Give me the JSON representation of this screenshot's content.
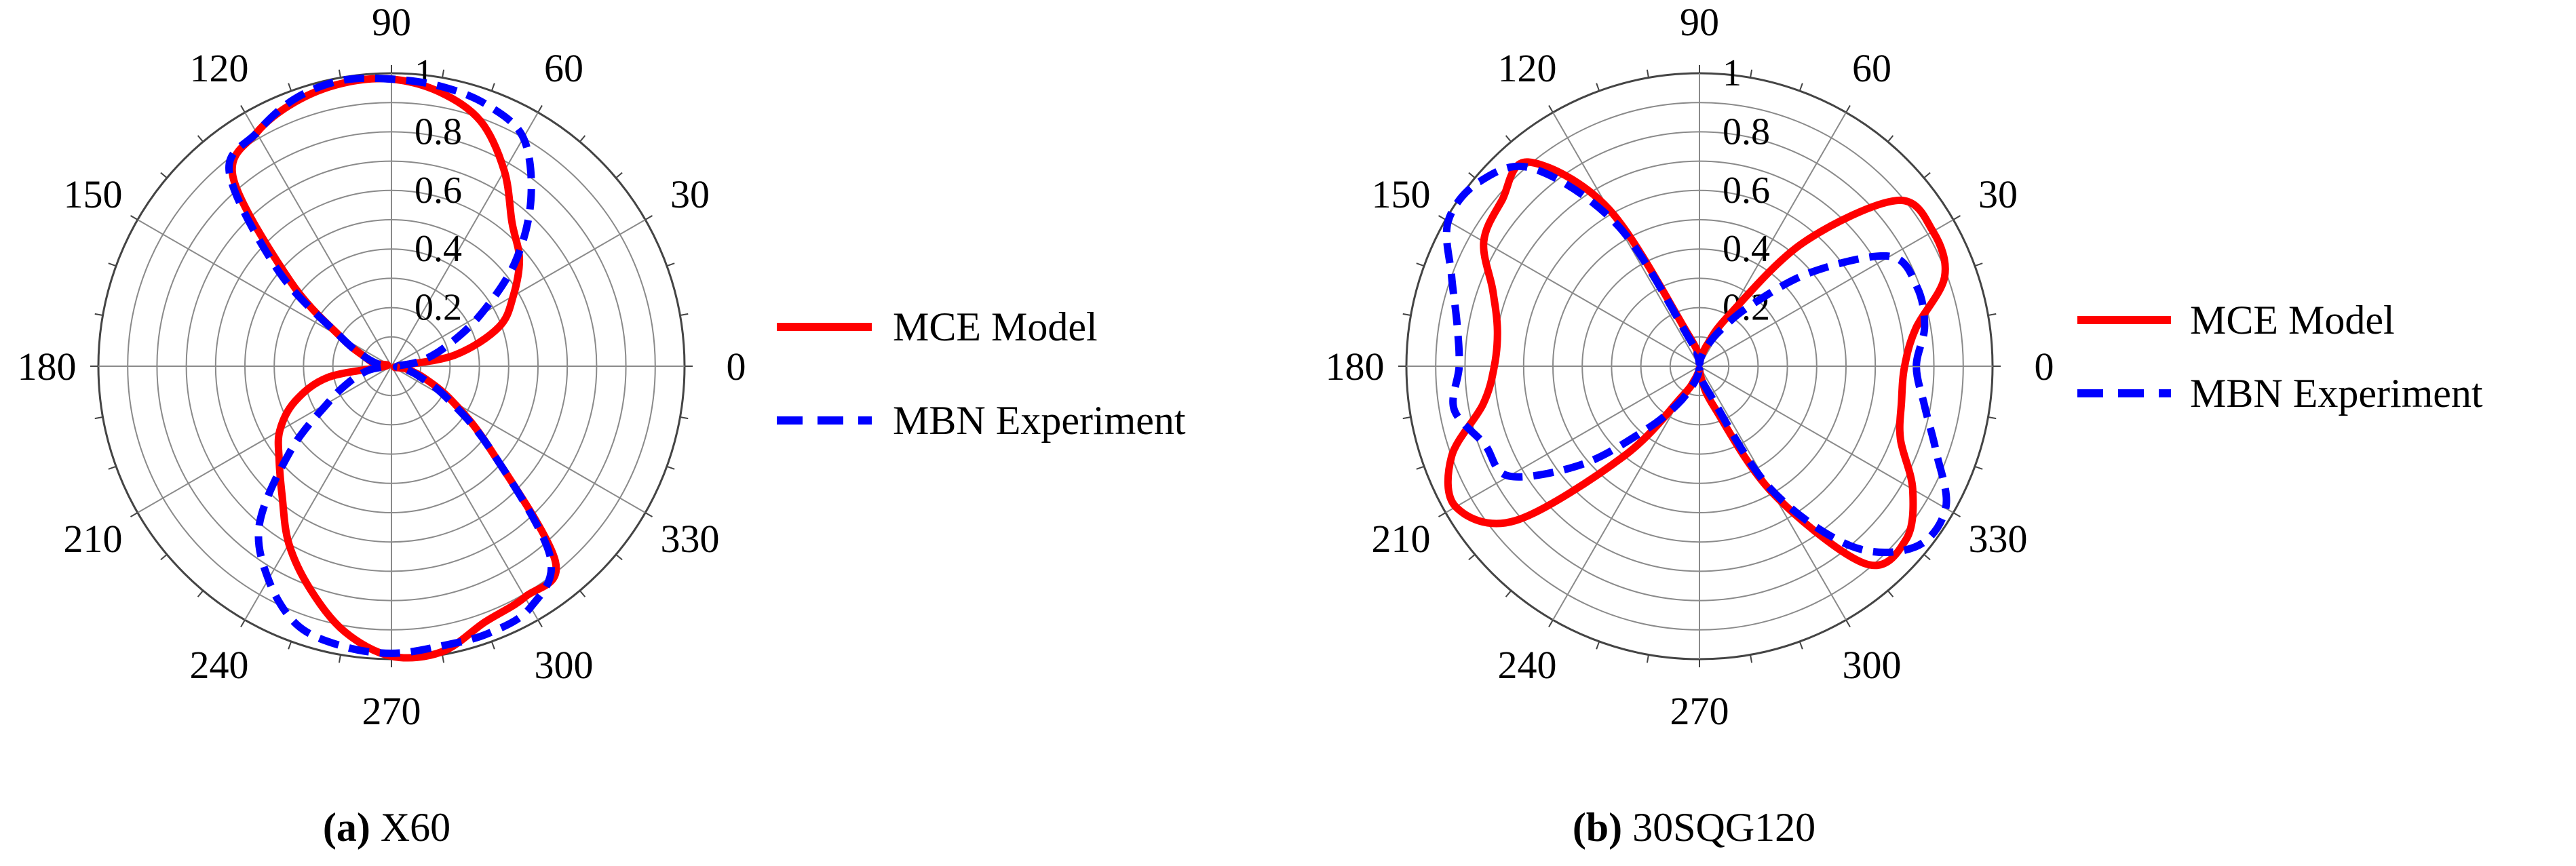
{
  "chart_data": [
    {
      "type": "polar-line",
      "panel": "a",
      "caption": {
        "letter": "(a)",
        "text": " X60"
      },
      "r_ticks": [
        "0.2",
        "0.4",
        "0.6",
        "0.8",
        "1"
      ],
      "r_range": [
        0,
        1
      ],
      "theta_ticks": [
        "0",
        "30",
        "60",
        "90",
        "120",
        "150",
        "180",
        "210",
        "240",
        "270",
        "300",
        "330"
      ],
      "legend": [
        {
          "name": "MCE Model",
          "color": "#ff0000",
          "dash": "solid"
        },
        {
          "name": "MBN Experiment",
          "color": "#0000ff",
          "dash": "dashed"
        }
      ],
      "series": [
        {
          "name": "MCE Model",
          "theta_deg": [
            0,
            10,
            20,
            30,
            40,
            50,
            60,
            70,
            80,
            90,
            100,
            110,
            120,
            130,
            140,
            150,
            160,
            170,
            180,
            190,
            200,
            210,
            220,
            230,
            240,
            250,
            260,
            270,
            280,
            290,
            300,
            310,
            320,
            330,
            340,
            350
          ],
          "r": [
            0.02,
            0.22,
            0.39,
            0.48,
            0.57,
            0.64,
            0.77,
            0.89,
            0.95,
            0.98,
            0.98,
            0.96,
            0.92,
            0.84,
            0.45,
            0.2,
            0.1,
            0.06,
            0.02,
            0.22,
            0.35,
            0.44,
            0.5,
            0.58,
            0.7,
            0.81,
            0.92,
            0.99,
            0.99,
            0.93,
            0.91,
            0.87,
            0.44,
            0.24,
            0.12,
            0.05
          ]
        },
        {
          "name": "MBN Experiment",
          "theta_deg": [
            0,
            10,
            20,
            30,
            40,
            50,
            60,
            70,
            80,
            90,
            100,
            110,
            120,
            130,
            140,
            150,
            160,
            170,
            180,
            190,
            200,
            210,
            220,
            230,
            240,
            250,
            260,
            270,
            280,
            290,
            300,
            310,
            320,
            330,
            340,
            350
          ],
          "r": [
            0.02,
            0.1,
            0.2,
            0.35,
            0.55,
            0.74,
            0.9,
            0.95,
            0.97,
            0.98,
            0.99,
            0.97,
            0.92,
            0.86,
            0.5,
            0.2,
            0.1,
            0.05,
            0.02,
            0.08,
            0.15,
            0.25,
            0.45,
            0.7,
            0.84,
            0.94,
            0.97,
            0.98,
            0.97,
            0.97,
            0.95,
            0.84,
            0.44,
            0.22,
            0.1,
            0.04
          ]
        }
      ]
    },
    {
      "type": "polar-line",
      "panel": "b",
      "caption": {
        "letter": "(b)",
        "text": " 30SQG120"
      },
      "r_ticks": [
        "0.2",
        "0.4",
        "0.6",
        "0.8",
        "1"
      ],
      "r_range": [
        0,
        1
      ],
      "theta_ticks": [
        "0",
        "30",
        "60",
        "90",
        "120",
        "150",
        "180",
        "210",
        "240",
        "270",
        "300",
        "330"
      ],
      "legend": [
        {
          "name": "MCE Model",
          "color": "#ff0000",
          "dash": "solid"
        },
        {
          "name": "MBN Experiment",
          "color": "#0000ff",
          "dash": "dashed"
        }
      ],
      "series": [
        {
          "name": "MCE Model",
          "theta_deg": [
            0,
            10,
            20,
            30,
            40,
            50,
            60,
            70,
            80,
            90,
            100,
            110,
            120,
            130,
            140,
            150,
            160,
            170,
            180,
            190,
            200,
            210,
            220,
            230,
            240,
            250,
            260,
            270,
            280,
            290,
            300,
            310,
            320,
            330,
            340,
            350
          ],
          "r": [
            0.7,
            0.75,
            0.89,
            0.92,
            0.88,
            0.55,
            0.2,
            0.08,
            0.03,
            0.01,
            0.04,
            0.12,
            0.62,
            0.91,
            0.88,
            0.85,
            0.75,
            0.7,
            0.7,
            0.75,
            0.9,
            0.96,
            0.82,
            0.4,
            0.12,
            0.05,
            0.02,
            0.01,
            0.05,
            0.15,
            0.5,
            0.88,
            0.92,
            0.84,
            0.73,
            0.7
          ],
          "close": true
        },
        {
          "name": "MBN Experiment",
          "theta_deg": [
            0,
            10,
            20,
            30,
            40,
            50,
            60,
            70,
            80,
            90,
            100,
            110,
            120,
            130,
            140,
            150,
            160,
            170,
            180,
            190,
            200,
            210,
            220,
            230,
            240,
            250,
            260,
            270,
            280,
            290,
            300,
            310,
            320,
            330,
            340,
            350
          ],
          "r": [
            0.74,
            0.78,
            0.79,
            0.75,
            0.5,
            0.27,
            0.14,
            0.07,
            0.03,
            0.01,
            0.04,
            0.1,
            0.55,
            0.88,
            0.98,
            0.99,
            0.9,
            0.84,
            0.82,
            0.85,
            0.78,
            0.75,
            0.52,
            0.28,
            0.15,
            0.07,
            0.03,
            0.01,
            0.04,
            0.1,
            0.48,
            0.8,
            0.96,
            0.97,
            0.86,
            0.78
          ],
          "close": true
        }
      ]
    }
  ]
}
